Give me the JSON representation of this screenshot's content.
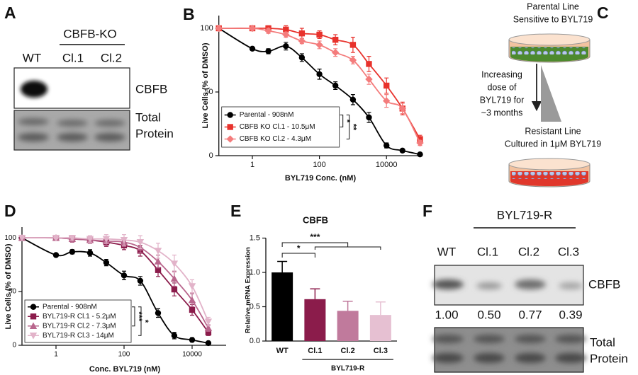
{
  "panels": {
    "A": {
      "label": "A",
      "group": "CBFB-KO",
      "lanes": [
        "WT",
        "Cl.1",
        "Cl.2"
      ],
      "bands": "CBFB",
      "loading": [
        "Total",
        "Protein"
      ]
    },
    "C": {
      "label": "C",
      "top": [
        "Parental Line",
        "Sensitive to BYL719"
      ],
      "arrow": [
        "Increasing",
        "dose of",
        "BYL719 for",
        "~3 months"
      ],
      "bottom": [
        "Resistant Line",
        "Cultured in 1μM BYL719"
      ]
    },
    "F": {
      "label": "F",
      "group": "BYL719-R",
      "lanes": [
        "WT",
        "Cl.1",
        "Cl.2",
        "Cl.3"
      ],
      "bands": "CBFB",
      "quant": [
        "1.00",
        "0.50",
        "0.77",
        "0.39"
      ],
      "loading": [
        "Total",
        "Protein"
      ]
    }
  },
  "chart_data": [
    {
      "type": "line",
      "panel": "B",
      "xlabel": "BYL719 Conc. (nM)",
      "ylabel": "Live Cells (% of DMSO)",
      "xscale": "log",
      "x": [
        0.1,
        1,
        3,
        10,
        30,
        100,
        300,
        1000,
        3000,
        10000,
        30000,
        100000
      ],
      "xlim": [
        0.1,
        100000
      ],
      "xticks": [
        1,
        100,
        10000
      ],
      "ylim": [
        0,
        110
      ],
      "yticks": [
        0,
        50,
        100
      ],
      "legend": "bottom-left",
      "series": [
        {
          "name": "Parental - 908nM",
          "color": "#000000",
          "marker": "circle",
          "values": [
            100,
            84,
            82,
            86,
            77,
            64,
            55,
            44,
            30,
            8,
            4,
            1
          ],
          "errors": [
            0,
            1,
            2,
            3,
            3,
            4,
            3,
            4,
            4,
            2,
            1,
            1
          ]
        },
        {
          "name": "CBFB KO Cl.1 - 10.5μM",
          "color": "#e8322c",
          "marker": "square",
          "values": [
            100,
            100,
            100,
            99,
            96,
            95,
            91,
            87,
            72,
            55,
            37,
            13
          ],
          "errors": [
            0,
            1,
            2,
            3,
            4,
            3,
            4,
            6,
            6,
            6,
            5,
            3
          ]
        },
        {
          "name": "CBFB KO Cl.2 - 4.3μM",
          "color": "#f47c7c",
          "marker": "diamond",
          "values": [
            100,
            100,
            98,
            95,
            90,
            87,
            81,
            75,
            60,
            43,
            37,
            10
          ],
          "errors": [
            0,
            1,
            2,
            2,
            2,
            3,
            3,
            3,
            4,
            5,
            4,
            2
          ]
        }
      ],
      "significance": [
        "*",
        "**"
      ]
    },
    {
      "type": "line",
      "panel": "D",
      "xlabel": "Conc. BYL719 (nM)",
      "ylabel": "Live Cells (% of DMSO)",
      "xscale": "log",
      "x": [
        0.1,
        1,
        3,
        10,
        30,
        100,
        300,
        1000,
        3000,
        10000,
        30000
      ],
      "xlim": [
        0.1,
        100000
      ],
      "xticks": [
        1,
        100,
        10000
      ],
      "ylim": [
        0,
        110
      ],
      "yticks": [
        0,
        50,
        100
      ],
      "legend": "bottom-left",
      "series": [
        {
          "name": "Parental - 908nM",
          "color": "#000000",
          "marker": "circle",
          "values": [
            100,
            84,
            87,
            86,
            77,
            65,
            60,
            30,
            9,
            5,
            2
          ],
          "errors": [
            0,
            1,
            2,
            3,
            3,
            4,
            4,
            4,
            3,
            2,
            1
          ]
        },
        {
          "name": "BYL719-R Cl.1 - 5.2μM",
          "color": "#8b1c4b",
          "marker": "square",
          "values": [
            100,
            100,
            99,
            98,
            96,
            93,
            88,
            70,
            52,
            33,
            12
          ],
          "errors": [
            0,
            1,
            3,
            3,
            4,
            4,
            5,
            6,
            6,
            5,
            3
          ]
        },
        {
          "name": "BYL719-R Cl.2 - 7.3μM",
          "color": "#b9668d",
          "marker": "triangle",
          "values": [
            100,
            100,
            99,
            98,
            97,
            96,
            91,
            78,
            62,
            42,
            16
          ],
          "errors": [
            0,
            1,
            3,
            3,
            4,
            4,
            5,
            6,
            7,
            6,
            3
          ]
        },
        {
          "name": "BYL719-R Cl.3 - 14μM",
          "color": "#e2b3c9",
          "marker": "triangle-down",
          "values": [
            100,
            100,
            100,
            99,
            99,
            98,
            96,
            88,
            76,
            55,
            22
          ],
          "errors": [
            0,
            1,
            2,
            3,
            4,
            5,
            6,
            7,
            8,
            6,
            4
          ]
        }
      ],
      "significance": [
        "***",
        "*"
      ]
    },
    {
      "type": "bar",
      "panel": "E",
      "title": "CBFB",
      "ylabel": "Relative mRNA Expression",
      "categories": [
        "WT",
        "Cl.1",
        "Cl.2",
        "Cl.3"
      ],
      "group": "BYL719-R",
      "values": [
        1.0,
        0.61,
        0.44,
        0.38
      ],
      "errors": [
        0.16,
        0.15,
        0.14,
        0.19
      ],
      "colors": [
        "#000000",
        "#8b1c4b",
        "#c07a9c",
        "#e6c0d2"
      ],
      "ylim": [
        0,
        1.5
      ],
      "yticks": [
        {
          "value": 0,
          "label": "0.0"
        },
        {
          "value": 0.5,
          "label": "0.5"
        },
        {
          "value": 1,
          "label": "1.0"
        },
        {
          "value": 1.5,
          "label": "1.5"
        }
      ],
      "significance": [
        "*",
        "***"
      ]
    }
  ]
}
